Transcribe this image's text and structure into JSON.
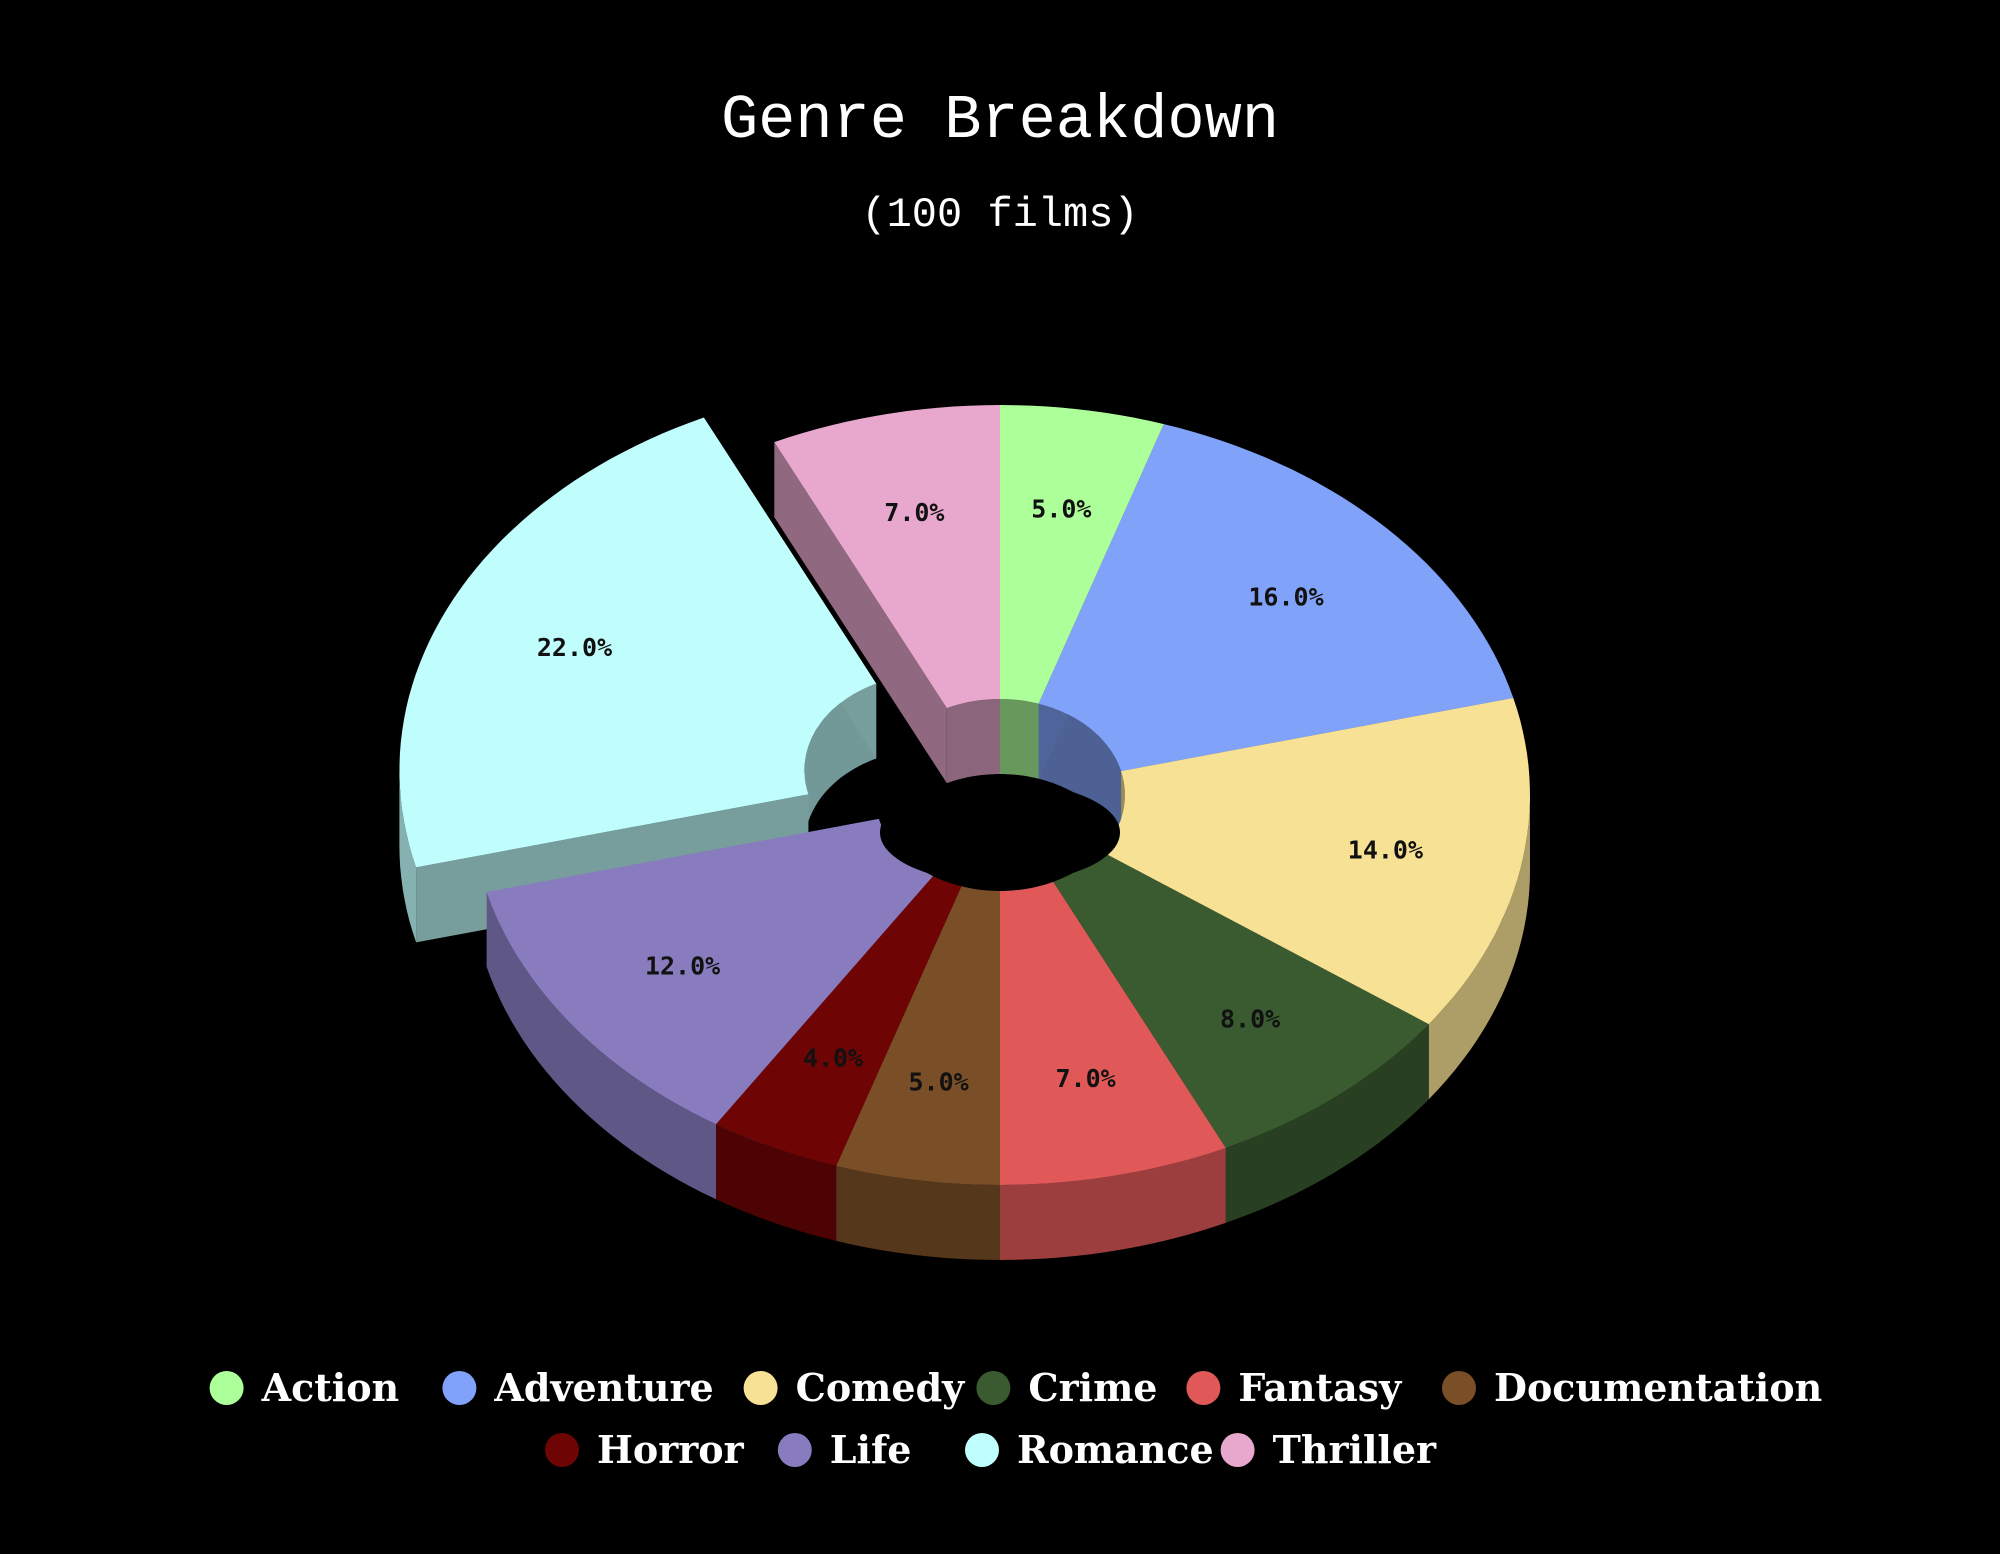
{
  "chart_data": {
    "type": "pie",
    "title": "Genre Breakdown",
    "subtitle": "(100 films)",
    "style": "3d-donut",
    "exploded": "Romance",
    "legend_position": "bottom",
    "slices": [
      {
        "name": "Action",
        "value": 5.0,
        "label": "5.0%",
        "color": "#adff99"
      },
      {
        "name": "Adventure",
        "value": 16.0,
        "label": "16.0%",
        "color": "#80a2f8"
      },
      {
        "name": "Comedy",
        "value": 14.0,
        "label": "14.0%",
        "color": "#f7e194"
      },
      {
        "name": "Crime",
        "value": 8.0,
        "label": "8.0%",
        "color": "#3a5a30"
      },
      {
        "name": "Fantasy",
        "value": 7.0,
        "label": "7.0%",
        "color": "#e05858"
      },
      {
        "name": "Documentation",
        "value": 5.0,
        "label": "5.0%",
        "color": "#7a4e26"
      },
      {
        "name": "Horror",
        "value": 4.0,
        "label": "4.0%",
        "color": "#6e0404"
      },
      {
        "name": "Life",
        "value": 12.0,
        "label": "12.0%",
        "color": "#887cbf"
      },
      {
        "name": "Romance",
        "value": 22.0,
        "label": "22.0%",
        "color": "#c0fdfd"
      },
      {
        "name": "Thriller",
        "value": 7.0,
        "label": "7.0%",
        "color": "#e8a8cd"
      }
    ]
  }
}
